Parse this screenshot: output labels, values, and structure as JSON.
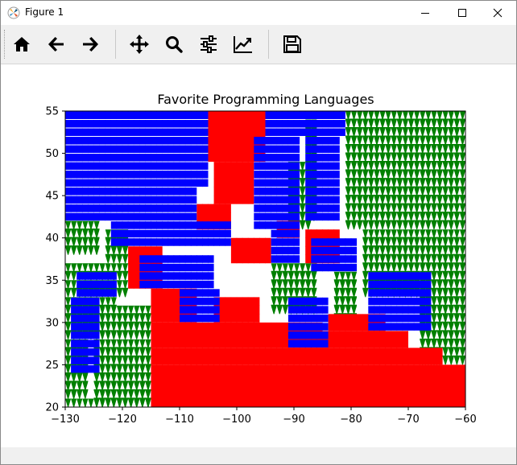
{
  "window": {
    "title": "Figure 1",
    "minimize_icon": "minimize-icon",
    "maximize_icon": "maximize-icon",
    "close_icon": "close-icon"
  },
  "toolbar": {
    "buttons": [
      {
        "name": "home-button",
        "icon": "home-icon"
      },
      {
        "name": "back-button",
        "icon": "arrow-left-icon"
      },
      {
        "name": "forward-button",
        "icon": "arrow-right-icon"
      },
      {
        "name": "pan-button",
        "icon": "move-icon"
      },
      {
        "name": "zoom-button",
        "icon": "magnifier-icon"
      },
      {
        "name": "subplots-button",
        "icon": "sliders-icon"
      },
      {
        "name": "axes-edit-button",
        "icon": "line-chart-icon"
      },
      {
        "name": "save-button",
        "icon": "floppy-disk-icon"
      }
    ]
  },
  "chart_data": {
    "type": "scatter",
    "title": "Favorite Programming Languages",
    "xlim": [
      -130,
      -60
    ],
    "ylim": [
      20,
      55
    ],
    "xticks": [
      "−130",
      "−120",
      "−110",
      "−100",
      "−90",
      "−80",
      "−70",
      "−60"
    ],
    "yticks": [
      "20",
      "25",
      "30",
      "35",
      "40",
      "45",
      "50",
      "55"
    ],
    "grid_step": 1,
    "grid": false,
    "legend": "none",
    "colors": {
      "green": "#008000",
      "red": "#ff0000",
      "blue": "#0000ff"
    },
    "series": [
      {
        "color": "green",
        "marker": "triangle-down",
        "regions": [
          {
            "x": [
              -130,
              -115
            ],
            "y": [
              20,
              21
            ]
          },
          {
            "x": [
              -130,
              -128
            ],
            "y": [
              21,
              23
            ]
          },
          {
            "x": [
              -130,
              -126
            ],
            "y": [
              21,
              28
            ]
          },
          {
            "x": [
              -130,
              -121
            ],
            "y": [
              28,
              33
            ]
          },
          {
            "x": [
              -130,
              -119
            ],
            "y": [
              33,
              35
            ]
          },
          {
            "x": [
              -130,
              -118
            ],
            "y": [
              35,
              37
            ]
          },
          {
            "x": [
              -130,
              -124
            ],
            "y": [
              38,
              42
            ]
          },
          {
            "x": [
              -123,
              -119
            ],
            "y": [
              37,
              41
            ]
          },
          {
            "x": [
              -125,
              -115
            ],
            "y": [
              20,
              28
            ]
          },
          {
            "x": [
              -121,
              -115
            ],
            "y": [
              28,
              32
            ]
          },
          {
            "x": [
              -81,
              -60
            ],
            "y": [
              41,
              55
            ]
          },
          {
            "x": [
              -78,
              -68
            ],
            "y": [
              33,
              41
            ]
          },
          {
            "x": [
              -68,
              -60
            ],
            "y": [
              25,
              41
            ]
          },
          {
            "x": [
              -83,
              -79
            ],
            "y": [
              30,
              36
            ]
          },
          {
            "x": [
              -94,
              -86
            ],
            "y": [
              31,
              37
            ]
          },
          {
            "x": [
              -88,
              -86
            ],
            "y": [
              42,
              54
            ]
          },
          {
            "x": [
              -91,
              -87
            ],
            "y": [
              41,
              49
            ]
          }
        ]
      },
      {
        "color": "red",
        "marker": "circle",
        "regions": [
          {
            "x": [
              -115,
              -60
            ],
            "y": [
              20,
              25
            ]
          },
          {
            "x": [
              -115,
              -64
            ],
            "y": [
              25,
              27
            ]
          },
          {
            "x": [
              -115,
              -85
            ],
            "y": [
              27,
              30
            ]
          },
          {
            "x": [
              -85,
              -70
            ],
            "y": [
              27,
              29
            ]
          },
          {
            "x": [
              -115,
              -107
            ],
            "y": [
              30,
              34
            ]
          },
          {
            "x": [
              -119,
              -113
            ],
            "y": [
              34,
              39
            ]
          },
          {
            "x": [
              -105,
              -95
            ],
            "y": [
              49,
              55
            ]
          },
          {
            "x": [
              -104,
              -97
            ],
            "y": [
              44,
              49
            ]
          },
          {
            "x": [
              -107,
              -101
            ],
            "y": [
              41,
              44
            ]
          },
          {
            "x": [
              -101,
              -94
            ],
            "y": [
              37,
              40
            ]
          },
          {
            "x": [
              -88,
              -82
            ],
            "y": [
              37,
              41
            ]
          },
          {
            "x": [
              -104,
              -96
            ],
            "y": [
              30,
              33
            ]
          },
          {
            "x": [
              -93,
              -89
            ],
            "y": [
              40,
              42
            ]
          },
          {
            "x": [
              -84,
              -74
            ],
            "y": [
              29,
              31
            ]
          }
        ]
      },
      {
        "color": "blue",
        "marker": "square",
        "regions": [
          {
            "x": [
              -130,
              -105
            ],
            "y": [
              46,
              55
            ]
          },
          {
            "x": [
              -130,
              -107
            ],
            "y": [
              42,
              46
            ]
          },
          {
            "x": [
              -122,
              -101
            ],
            "y": [
              39,
              42
            ]
          },
          {
            "x": [
              -95,
              -81
            ],
            "y": [
              52,
              55
            ]
          },
          {
            "x": [
              -97,
              -89
            ],
            "y": [
              41,
              52
            ]
          },
          {
            "x": [
              -88,
              -82
            ],
            "y": [
              42,
              52
            ]
          },
          {
            "x": [
              -117,
              -104
            ],
            "y": [
              34,
              38
            ]
          },
          {
            "x": [
              -128,
              -121
            ],
            "y": [
              33,
              36
            ]
          },
          {
            "x": [
              -129,
              -124
            ],
            "y": [
              24,
              33
            ]
          },
          {
            "x": [
              -110,
              -103
            ],
            "y": [
              30,
              34
            ]
          },
          {
            "x": [
              -91,
              -84
            ],
            "y": [
              27,
              33
            ]
          },
          {
            "x": [
              -87,
              -79
            ],
            "y": [
              36,
              40
            ]
          },
          {
            "x": [
              -77,
              -66
            ],
            "y": [
              29,
              36
            ]
          },
          {
            "x": [
              -94,
              -89
            ],
            "y": [
              37,
              41
            ]
          }
        ]
      }
    ]
  }
}
